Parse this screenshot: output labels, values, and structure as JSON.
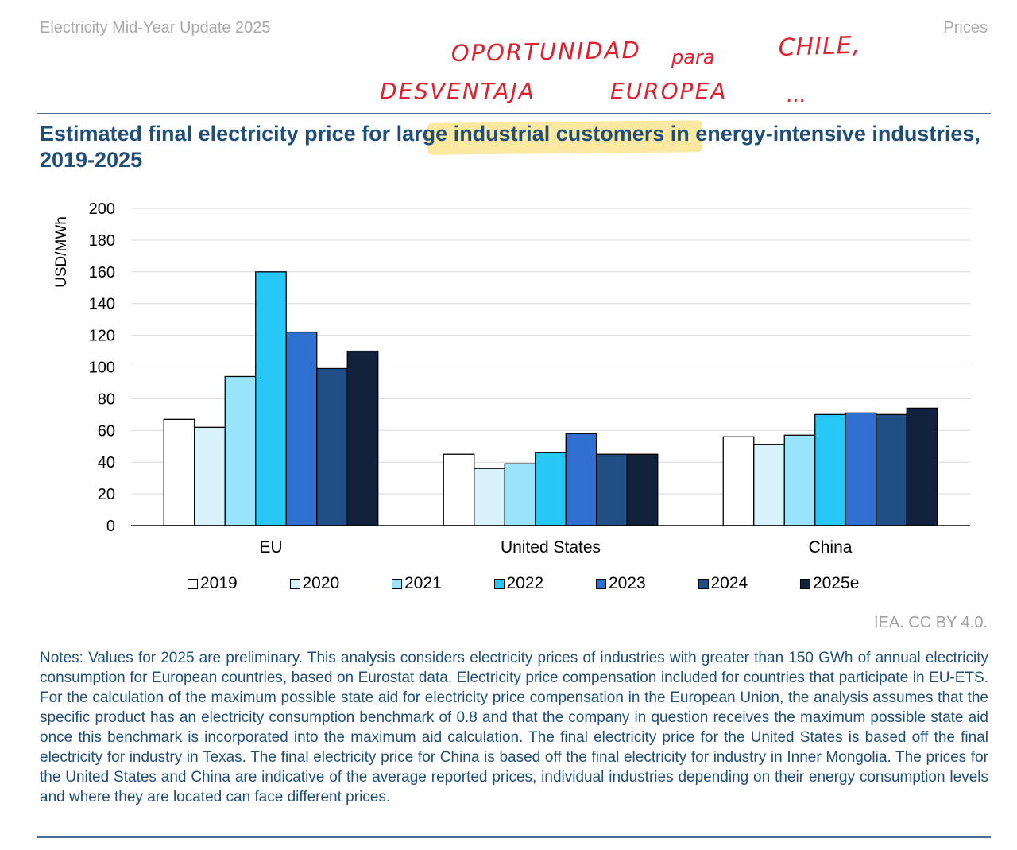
{
  "header": {
    "report_title": "Electricity Mid-Year Update 2025",
    "section": "Prices"
  },
  "annotation": {
    "line1a": "OPORTUNIDAD",
    "line1b": "para",
    "line1c": "CHILE,",
    "line2a": "DESVENTAJA",
    "line2b": "EUROPEA",
    "line2c": "...",
    "ink_color": "#e0202e",
    "highlight_color": "#fbe9a1"
  },
  "title": "Estimated final electricity price for large industrial customers in energy-intensive industries, 2019-2025",
  "credit": "IEA. CC BY 4.0.",
  "notes": "Notes: Values for 2025 are preliminary. This analysis considers electricity prices of industries with greater than 150 GWh of annual electricity consumption for European countries, based on Eurostat data. Electricity price compensation included for countries that participate in EU-ETS. For the calculation of the maximum possible state aid for electricity price compensation in the European Union, the analysis assumes that the specific product has an electricity consumption benchmark of 0.8 and that the company in question receives the maximum possible state aid once this benchmark is incorporated into the maximum aid calculation. The final electricity price for the United States is based off the final electricity for industry in Texas. The final electricity price for China is based off the final electricity for industry in Inner Mongolia. The prices for the United States and China are indicative of the average reported prices, individual industries depending on their energy consumption levels and where they are located can face different prices.",
  "chart_data": {
    "type": "bar",
    "title": "Estimated final electricity price for large industrial customers in energy-intensive industries, 2019-2025",
    "categories": [
      "EU",
      "United States",
      "China"
    ],
    "ylabel": "USD/MWh",
    "xlabel": "",
    "ylim": [
      0,
      200
    ],
    "yticks": [
      0,
      20,
      40,
      60,
      80,
      100,
      120,
      140,
      160,
      180,
      200
    ],
    "grid": true,
    "legend_position": "bottom",
    "series": [
      {
        "name": "2019",
        "color": "#ffffff",
        "values": [
          67,
          45,
          56
        ]
      },
      {
        "name": "2020",
        "color": "#d9f3fd",
        "values": [
          62,
          36,
          51
        ]
      },
      {
        "name": "2021",
        "color": "#99e3fb",
        "values": [
          94,
          39,
          57
        ]
      },
      {
        "name": "2022",
        "color": "#27c7f7",
        "values": [
          160,
          46,
          70
        ]
      },
      {
        "name": "2023",
        "color": "#2e6fcf",
        "values": [
          122,
          58,
          71
        ]
      },
      {
        "name": "2024",
        "color": "#1f4f85",
        "values": [
          99,
          45,
          70
        ]
      },
      {
        "name": "2025e",
        "color": "#12223d",
        "values": [
          110,
          45,
          74
        ]
      }
    ]
  }
}
